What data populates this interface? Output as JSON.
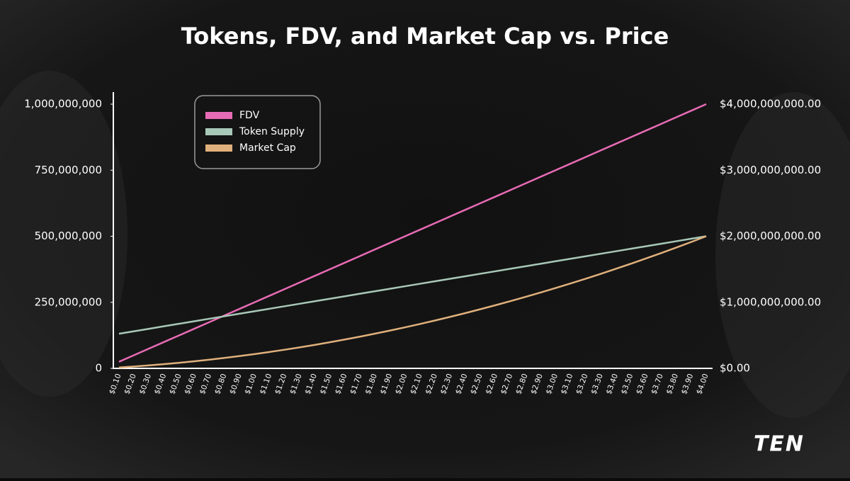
{
  "chart_data": {
    "type": "line",
    "title": "Tokens, FDV, and Market Cap vs. Price",
    "logo": "TEN",
    "categories": [
      "$0.10",
      "$0.20",
      "$0.30",
      "$0.40",
      "$0.50",
      "$0.60",
      "$0.70",
      "$0.80",
      "$0.90",
      "$1.00",
      "$1.10",
      "$1.20",
      "$1.30",
      "$1.40",
      "$1.50",
      "$1.60",
      "$1.70",
      "$1.80",
      "$1.90",
      "$2.00",
      "$2.10",
      "$2.20",
      "$2.30",
      "$2.40",
      "$2.50",
      "$2.60",
      "$2.70",
      "$2.80",
      "$2.90",
      "$3.00",
      "$3.10",
      "$3.20",
      "$3.30",
      "$3.40",
      "$3.50",
      "$3.60",
      "$3.70",
      "$3.80",
      "$3.90",
      "$4.00"
    ],
    "series": [
      {
        "name": "FDV",
        "color": "#e86bb5",
        "axis": "y2",
        "values": [
          100000000,
          200000000,
          300000000,
          400000000,
          500000000,
          600000000,
          700000000,
          800000000,
          900000000,
          1000000000,
          1100000000,
          1200000000,
          1300000000,
          1400000000,
          1500000000,
          1600000000,
          1700000000,
          1800000000,
          1900000000,
          2000000000,
          2100000000,
          2200000000,
          2300000000,
          2400000000,
          2500000000,
          2600000000,
          2700000000,
          2800000000,
          2900000000,
          3000000000,
          3100000000,
          3200000000,
          3300000000,
          3400000000,
          3500000000,
          3600000000,
          3700000000,
          3800000000,
          3900000000,
          4000000000
        ]
      },
      {
        "name": "Token Supply",
        "color": "#a8c8b8",
        "values": [
          131000000,
          140500000,
          149900000,
          159400000,
          168800000,
          178300000,
          187800000,
          197200000,
          206700000,
          216200000,
          225600000,
          235100000,
          244500000,
          254000000,
          263500000,
          272900000,
          282400000,
          291800000,
          301300000,
          310800000,
          320200000,
          329700000,
          339200000,
          348600000,
          358100000,
          367500000,
          377000000,
          386500000,
          395900000,
          405400000,
          414800000,
          424300000,
          433800000,
          443200000,
          452700000,
          462200000,
          471600000,
          481100000,
          490500000,
          500000000
        ]
      },
      {
        "name": "Market Cap",
        "color": "#e0b07c",
        "axis": "y2",
        "values": [
          13100000,
          28100000,
          45000000,
          63800000,
          84400000,
          107000000,
          131500000,
          157800000,
          186000000,
          216200000,
          248200000,
          282100000,
          317900000,
          355600000,
          395200000,
          436700000,
          480100000,
          525300000,
          572500000,
          621500000,
          672500000,
          725300000,
          780100000,
          836700000,
          895200000,
          955600000,
          1017900000,
          1082100000,
          1148100000,
          1216100000,
          1286000000,
          1357800000,
          1431500000,
          1506900000,
          1584400000,
          1663900000,
          1744900000,
          1828200000,
          1913000000,
          2000000000
        ]
      }
    ],
    "ylim": [
      0,
      1000000000
    ],
    "yticks": [
      0,
      {
        "value": 250000000,
        "label": "250,000,000"
      },
      {
        "value": 500000000,
        "label": "500,000,000"
      },
      {
        "value": 750000000,
        "label": "750,000,000"
      },
      {
        "value": 1000000000,
        "label": "1,000,000,000"
      }
    ],
    "y2lim": [
      0,
      4000000000
    ],
    "y2ticks": [
      {
        "value": 0,
        "label": "$0.00"
      },
      {
        "value": 1000000000,
        "label": "$1,000,000,000.00"
      },
      {
        "value": 2000000000,
        "label": "$2,000,000,000.00"
      },
      {
        "value": 3000000000,
        "label": "$3,000,000,000.00"
      },
      {
        "value": 4000000000,
        "label": "$4,000,000,000.00"
      }
    ],
    "legend": "top-left",
    "grid": false
  }
}
